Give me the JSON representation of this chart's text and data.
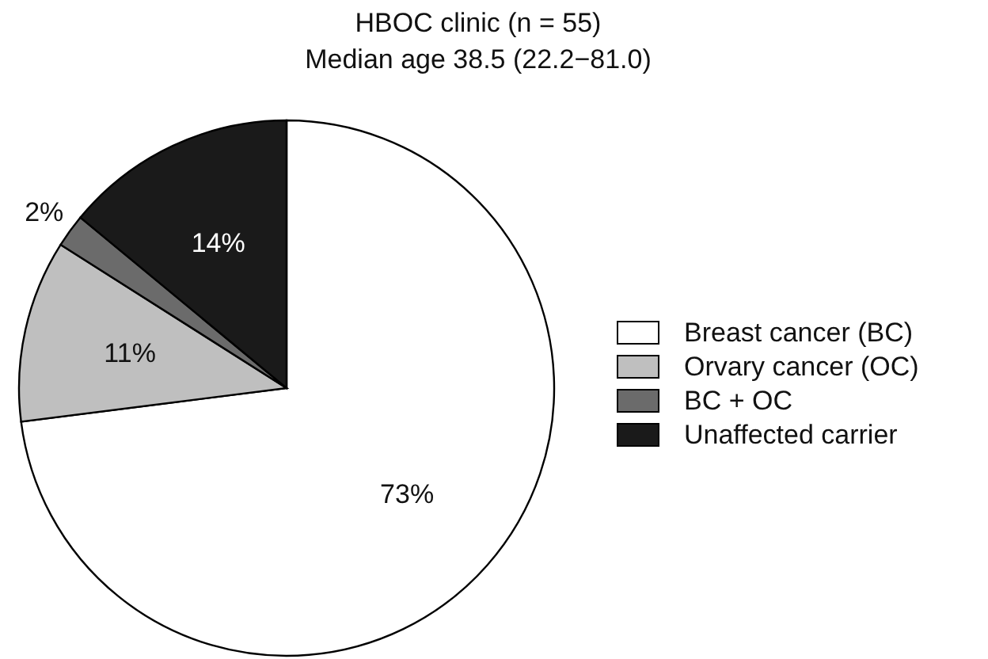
{
  "chart_data": {
    "type": "pie",
    "title": "HBOC clinic (n = 55)",
    "subtitle": "Median age 38.5 (22.2−81.0)",
    "categories": [
      "Breast cancer (BC)",
      "Orvary cancer (OC)",
      "BC + OC",
      "Unaffected carrier"
    ],
    "values": [
      73,
      11,
      2,
      14
    ],
    "colors": [
      "#ffffff",
      "#bfbfbf",
      "#6b6b6b",
      "#1a1a1a"
    ],
    "value_labels": [
      "73%",
      "11%",
      "2%",
      "14%"
    ],
    "legend": "right"
  }
}
